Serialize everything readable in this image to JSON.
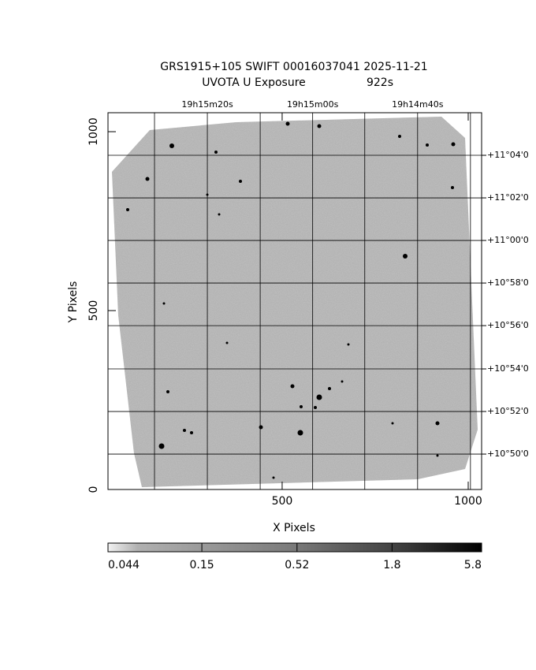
{
  "chart_data": {
    "type": "image",
    "title": "GRS1915+105 SWIFT 00016037041 2025-11-21",
    "subtitle": "UVOTA U Exposure",
    "exposure": "922s",
    "xlabel": "X Pixels",
    "ylabel": "Y Pixels",
    "xlim": [
      32,
      1036
    ],
    "ylim": [
      0,
      1053
    ],
    "xticks": [
      500,
      1000
    ],
    "yticks": [
      0,
      500,
      1000
    ],
    "grid": true,
    "x2grid": [
      157,
      299,
      441,
      582,
      722,
      864,
      1006
    ],
    "x2ticks": [
      {
        "value": 299,
        "label": "19h15m20s"
      },
      {
        "value": 582,
        "label": "19h15m00s"
      },
      {
        "value": 864,
        "label": "19h14m40s"
      }
    ],
    "y2ticks": [
      {
        "value": 934,
        "label": "+11°04'0"
      },
      {
        "value": 815,
        "label": "+11°02'0"
      },
      {
        "value": 696,
        "label": "+11°00'0"
      },
      {
        "value": 577,
        "label": "+10°58'0"
      },
      {
        "value": 458,
        "label": "+10°56'0"
      },
      {
        "value": 337,
        "label": "+10°54'0"
      },
      {
        "value": 218,
        "label": "+10°52'0"
      },
      {
        "value": 99,
        "label": "+10°50'0"
      }
    ],
    "colorbar": {
      "lim": [
        0.044,
        5.8
      ],
      "ticks": [
        0.044,
        0.15,
        0.52,
        1.8,
        5.8
      ],
      "log": true
    }
  }
}
